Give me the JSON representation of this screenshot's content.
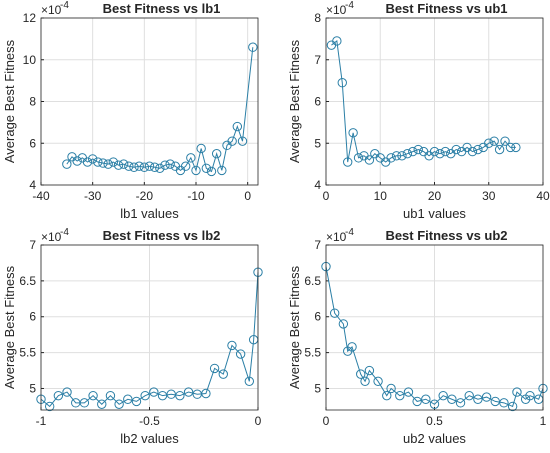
{
  "chart_data": [
    {
      "type": "line",
      "title": "Best Fitness vs lb1",
      "xlabel": "lb1 values",
      "ylabel": "Average Best Fitness",
      "y_multiplier": {
        "base": "×10",
        "exponent": "-4"
      },
      "x": [
        -35,
        -34,
        -33,
        -32,
        -31,
        -30,
        -29,
        -28,
        -27,
        -26,
        -25,
        -24,
        -23,
        -22,
        -21,
        -20,
        -19,
        -18,
        -17,
        -16,
        -15,
        -14,
        -13,
        -12,
        -11,
        -10,
        -9,
        -8,
        -7,
        -6,
        -5,
        -4,
        -3,
        -2,
        -1,
        1
      ],
      "series": [
        {
          "name": "lb1",
          "color": "#2b7fa6",
          "values": [
            5.0,
            5.35,
            5.15,
            5.3,
            5.1,
            5.25,
            5.1,
            5.05,
            5.0,
            5.1,
            4.95,
            5.0,
            4.9,
            4.85,
            4.9,
            4.85,
            4.9,
            4.85,
            4.8,
            4.95,
            5.0,
            4.9,
            4.7,
            4.9,
            5.3,
            4.7,
            5.75,
            4.8,
            4.65,
            5.5,
            4.7,
            5.9,
            6.1,
            6.8,
            6.1,
            10.6
          ]
        }
      ],
      "xlim": [
        -40,
        2
      ],
      "xticks": [
        -40,
        -30,
        -20,
        -10,
        0
      ],
      "ylim": [
        4,
        12
      ],
      "yticks": [
        4,
        6,
        8,
        10,
        12
      ],
      "grid": true
    },
    {
      "type": "line",
      "title": "Best Fitness vs ub1",
      "xlabel": "ub1 values",
      "ylabel": "Average Best Fitness",
      "y_multiplier": {
        "base": "×10",
        "exponent": "-4"
      },
      "x": [
        1,
        2,
        3,
        4,
        5,
        6,
        7,
        8,
        9,
        10,
        11,
        12,
        13,
        14,
        15,
        16,
        17,
        18,
        19,
        20,
        21,
        22,
        23,
        24,
        25,
        26,
        27,
        28,
        29,
        30,
        31,
        32,
        33,
        34,
        35
      ],
      "series": [
        {
          "name": "ub1",
          "color": "#2b7fa6",
          "values": [
            7.35,
            7.45,
            6.45,
            4.55,
            5.25,
            4.65,
            4.7,
            4.6,
            4.75,
            4.65,
            4.55,
            4.65,
            4.7,
            4.7,
            4.75,
            4.8,
            4.85,
            4.8,
            4.7,
            4.8,
            4.75,
            4.8,
            4.75,
            4.85,
            4.8,
            4.9,
            4.8,
            4.85,
            4.9,
            5.0,
            5.05,
            4.85,
            5.05,
            4.9,
            4.9
          ]
        }
      ],
      "xlim": [
        0,
        40
      ],
      "xticks": [
        0,
        10,
        20,
        30,
        40
      ],
      "ylim": [
        4,
        8
      ],
      "yticks": [
        4,
        5,
        6,
        7,
        8
      ],
      "grid": true
    },
    {
      "type": "line",
      "title": "Best Fitness vs lb2",
      "xlabel": "lb2 values",
      "ylabel": "Average Best Fitness",
      "y_multiplier": {
        "base": "×10",
        "exponent": "-4"
      },
      "x": [
        -1,
        -0.96,
        -0.92,
        -0.88,
        -0.84,
        -0.8,
        -0.76,
        -0.72,
        -0.68,
        -0.64,
        -0.6,
        -0.56,
        -0.52,
        -0.48,
        -0.44,
        -0.4,
        -0.36,
        -0.32,
        -0.28,
        -0.24,
        -0.2,
        -0.16,
        -0.12,
        -0.08,
        -0.04,
        -0.02,
        0
      ],
      "series": [
        {
          "name": "lb2",
          "color": "#2b7fa6",
          "values": [
            4.85,
            4.75,
            4.9,
            4.95,
            4.8,
            4.8,
            4.9,
            4.78,
            4.9,
            4.78,
            4.85,
            4.82,
            4.9,
            4.95,
            4.9,
            4.92,
            4.9,
            4.95,
            4.92,
            4.93,
            5.28,
            5.2,
            5.6,
            5.48,
            5.1,
            5.68,
            6.62
          ]
        }
      ],
      "xlim": [
        -1,
        0
      ],
      "xticks": [
        -1,
        -0.5,
        0
      ],
      "ylim": [
        4.7,
        7
      ],
      "yticks": [
        5,
        5.5,
        6,
        6.5,
        7
      ],
      "grid": true
    },
    {
      "type": "line",
      "title": "Best Fitness vs ub2",
      "xlabel": "ub2 values",
      "ylabel": "Average Best Fitness",
      "y_multiplier": {
        "base": "×10",
        "exponent": "-4"
      },
      "x": [
        0,
        0.04,
        0.08,
        0.1,
        0.12,
        0.16,
        0.18,
        0.2,
        0.24,
        0.28,
        0.3,
        0.34,
        0.38,
        0.42,
        0.46,
        0.5,
        0.54,
        0.58,
        0.62,
        0.66,
        0.7,
        0.74,
        0.78,
        0.82,
        0.86,
        0.88,
        0.92,
        0.94,
        0.98,
        1
      ],
      "series": [
        {
          "name": "ub2",
          "color": "#2b7fa6",
          "values": [
            6.7,
            6.05,
            5.9,
            5.52,
            5.58,
            5.2,
            5.1,
            5.25,
            5.1,
            4.9,
            5.0,
            4.9,
            4.95,
            4.82,
            4.85,
            4.78,
            4.9,
            4.85,
            4.8,
            4.9,
            4.85,
            4.88,
            4.82,
            4.8,
            4.75,
            4.95,
            4.85,
            4.9,
            4.85,
            5.0
          ]
        }
      ],
      "xlim": [
        0,
        1
      ],
      "xticks": [
        0,
        0.5,
        1
      ],
      "ylim": [
        4.7,
        7
      ],
      "yticks": [
        5,
        5.5,
        6,
        6.5,
        7
      ],
      "grid": true
    }
  ]
}
